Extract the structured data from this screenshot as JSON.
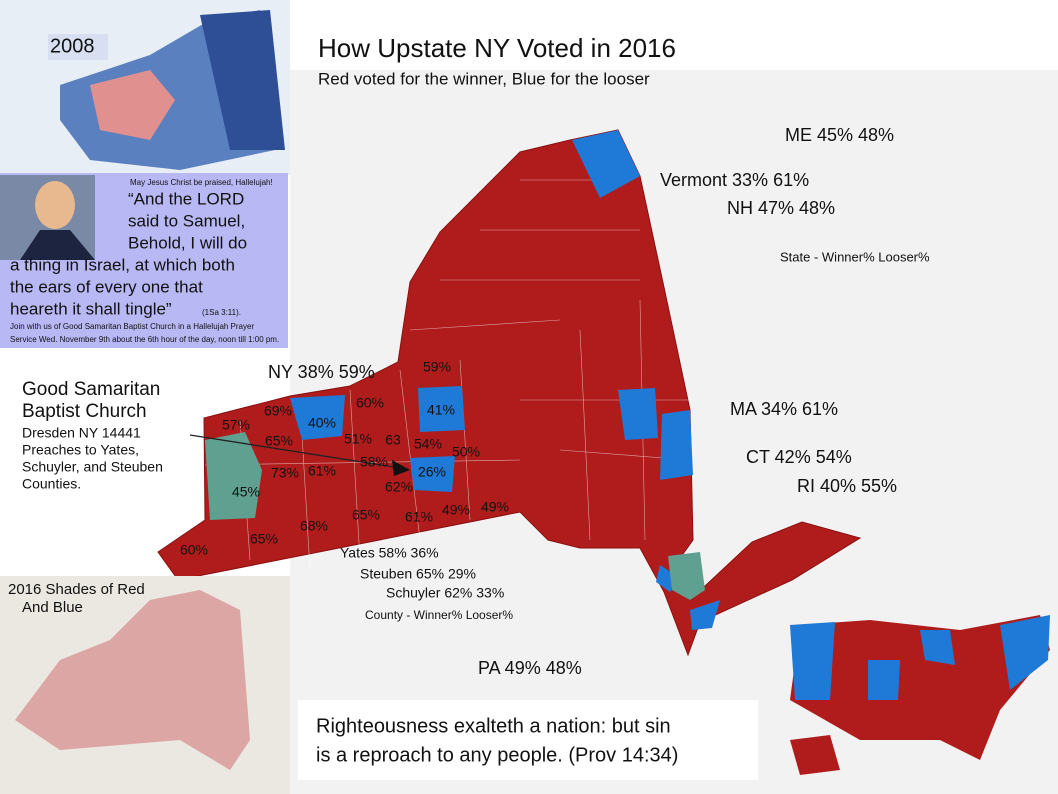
{
  "header": {
    "title": "How Upstate NY Voted in 2016",
    "subtitle": "Red voted for the winner, Blue for the looser"
  },
  "state_labels": [
    "ME 45% 48%",
    "Vermont 33% 61%",
    "NH 47% 48%",
    "NY 38% 59%",
    "MA 34% 61%",
    "CT 42% 54%",
    "RI 40% 55%",
    "PA 49% 48%"
  ],
  "state_legend": "State - Winner% Looser%",
  "county_labels": [
    "59%",
    "60%",
    "69%",
    "40%",
    "41%",
    "57%",
    "65%",
    "51%",
    "63",
    "54%",
    "50%",
    "58%",
    "26%",
    "73%",
    "61%",
    "62%",
    "45%",
    "65%",
    "61%",
    "49%",
    "49%",
    "68%",
    "65%",
    "60%"
  ],
  "county_notes": [
    "Yates 58% 36%",
    "Steuben 65% 29%",
    "Schuyler 62% 33%"
  ],
  "county_legend": "County - Winner% Looser%",
  "church": {
    "name": [
      "Good Samaritan",
      "Baptist Church"
    ],
    "details": [
      "Dresden NY 14441",
      "Preaches to Yates,",
      "Schuyler, and Steuben",
      "Counties."
    ]
  },
  "inset_2008": {
    "label": "2008"
  },
  "quote_box": {
    "praise": "May Jesus Christ be praised, Hallelujah!",
    "quote": [
      "“And the LORD",
      "said to Samuel,",
      "Behold, I will do",
      "a thing in Israel, at which both",
      "the ears of every one that",
      "heareth it shall tingle”"
    ],
    "reference": "(1Sa 3:11).",
    "invite": [
      "Join with us of Good Samaritan Baptist Church in a Hallelujah Prayer",
      "Service Wed. November 9th about the 6th hour of the day, noon till 1:00 pm."
    ]
  },
  "inset_2016": {
    "label": [
      "2016 Shades of Red",
      "And Blue"
    ]
  },
  "verse": [
    "Righteousness exalteth a nation: but sin",
    "is a reproach to any people. (Prov 14:34)"
  ]
}
